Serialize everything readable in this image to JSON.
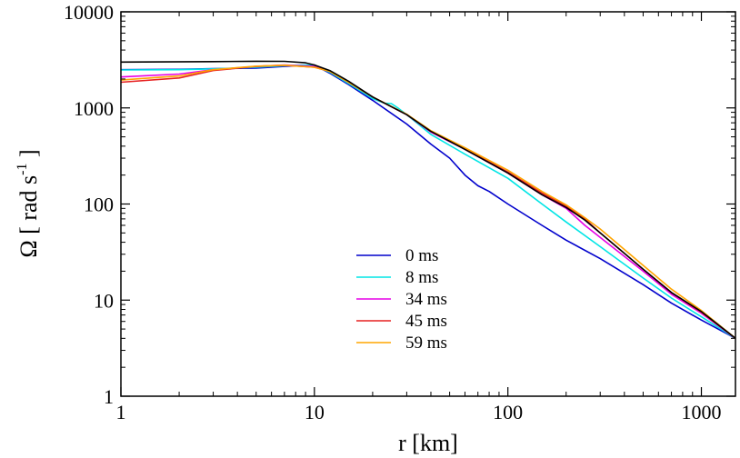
{
  "chart_data": {
    "type": "line",
    "xscale": "log",
    "yscale": "log",
    "xlim": [
      1,
      1500
    ],
    "ylim": [
      1,
      10000
    ],
    "xlabel": "r [km]",
    "ylabel": "Ω [ rad s⁻¹ ]",
    "ylabel_main": "Ω [ rad s",
    "ylabel_sup": "-1",
    "ylabel_end": " ]",
    "xticks": [
      1,
      10,
      100,
      1000
    ],
    "xtick_labels": [
      "1",
      "10",
      "100",
      "1000"
    ],
    "yticks": [
      1,
      10,
      100,
      1000,
      10000
    ],
    "ytick_labels": [
      "1",
      "10",
      "100",
      "1000",
      "10000"
    ],
    "legend_position": "center-bottom",
    "series": [
      {
        "name": "0 ms",
        "color": "#0000cc",
        "x": [
          1,
          2,
          3,
          5,
          6,
          8,
          10,
          12,
          15,
          20,
          30,
          40,
          50,
          60,
          70,
          80,
          100,
          150,
          200,
          300,
          500,
          700,
          1000,
          1500
        ],
        "y": [
          2500,
          2520,
          2560,
          2600,
          2650,
          2750,
          2800,
          2300,
          1750,
          1200,
          680,
          420,
          300,
          200,
          155,
          135,
          100,
          60,
          42,
          27,
          14.5,
          9.3,
          6.2,
          4.0
        ]
      },
      {
        "name": "8 ms",
        "color": "#00e5e5",
        "x": [
          1,
          2,
          3,
          5,
          7,
          9,
          10,
          12,
          15,
          20,
          23,
          25,
          27,
          30,
          40,
          60,
          100,
          150,
          200,
          300,
          500,
          700,
          1000,
          1500
        ],
        "y": [
          2480,
          2500,
          2550,
          2650,
          2750,
          2800,
          2750,
          2350,
          1800,
          1250,
          1120,
          1110,
          1000,
          850,
          530,
          330,
          185,
          100,
          65,
          36,
          17,
          10.5,
          6.7,
          4.0
        ]
      },
      {
        "name": "34 ms",
        "color": "#e600e6",
        "x": [
          1,
          2,
          3,
          5,
          7,
          10,
          12,
          15,
          20,
          30,
          40,
          60,
          100,
          150,
          200,
          250,
          300,
          500,
          700,
          1000,
          1500
        ],
        "y": [
          2100,
          2250,
          2500,
          2700,
          2800,
          2700,
          2400,
          1850,
          1300,
          850,
          560,
          370,
          210,
          125,
          90,
          60,
          45,
          20,
          11.5,
          7.3,
          4.0
        ]
      },
      {
        "name": "45 ms",
        "color": "#e62020",
        "x": [
          1,
          2,
          3,
          5,
          7,
          10,
          12,
          15,
          20,
          30,
          40,
          60,
          100,
          150,
          200,
          250,
          300,
          500,
          700,
          1000,
          1500
        ],
        "y": [
          1850,
          2050,
          2450,
          2700,
          2780,
          2650,
          2400,
          1850,
          1300,
          850,
          570,
          375,
          215,
          130,
          95,
          70,
          50,
          21,
          12,
          7.5,
          4.0
        ]
      },
      {
        "name": "59 ms",
        "color": "#ffa500",
        "x": [
          1,
          2,
          3,
          5,
          7,
          10,
          12,
          15,
          20,
          30,
          40,
          60,
          100,
          150,
          200,
          250,
          300,
          500,
          700,
          1000,
          1500
        ],
        "y": [
          1950,
          2150,
          2500,
          2720,
          2780,
          2650,
          2400,
          1850,
          1300,
          860,
          580,
          385,
          225,
          135,
          98,
          72,
          55,
          23,
          13,
          7.8,
          4.0
        ]
      },
      {
        "name": "",
        "color": "#000000",
        "x": [
          1,
          3,
          5,
          7,
          9,
          10,
          12,
          15,
          20,
          30,
          40,
          60,
          100,
          150,
          200,
          250,
          300,
          500,
          700,
          1000,
          1500
        ],
        "y": [
          3000,
          3030,
          3060,
          3050,
          2950,
          2800,
          2450,
          1900,
          1300,
          850,
          570,
          370,
          210,
          125,
          92,
          68,
          50,
          21,
          12,
          7.6,
          4.0
        ]
      }
    ]
  }
}
